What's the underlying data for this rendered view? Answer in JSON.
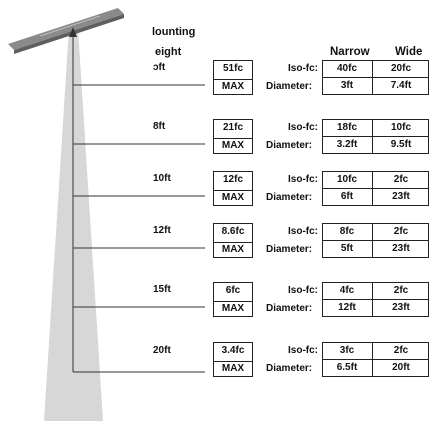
{
  "header": {
    "mounting_line1": "lounting",
    "mounting_line2": "eight",
    "col_narrow": "Narrow",
    "col_wide": "Wide"
  },
  "rows": [
    {
      "height": "ɔft",
      "fc": "51fc",
      "max": "MAX",
      "iso": "Iso-fc:",
      "diameter": "Diameter:",
      "narrow_fc": "40fc",
      "wide_fc": "20fc",
      "narrow_d": "3ft",
      "wide_d": "7.4ft"
    },
    {
      "height": "8ft",
      "fc": "21fc",
      "max": "MAX",
      "iso": "Iso-fc:",
      "diameter": "Diameter:",
      "narrow_fc": "18fc",
      "wide_fc": "10fc",
      "narrow_d": "3.2ft",
      "wide_d": "9.5ft"
    },
    {
      "height": "10ft",
      "fc": "12fc",
      "max": "MAX",
      "iso": "Iso-fc:",
      "diameter": "Diameter:",
      "narrow_fc": "10fc",
      "wide_fc": "2fc",
      "narrow_d": "6ft",
      "wide_d": "23ft"
    },
    {
      "height": "12ft",
      "fc": "8.6fc",
      "max": "MAX",
      "iso": "Iso-fc:",
      "diameter": "Diameter:",
      "narrow_fc": "8fc",
      "wide_fc": "2fc",
      "narrow_d": "5ft",
      "wide_d": "23ft"
    },
    {
      "height": "15ft",
      "fc": "6fc",
      "max": "MAX",
      "iso": "Iso-fc:",
      "diameter": "Diameter:",
      "narrow_fc": "4fc",
      "wide_fc": "2fc",
      "narrow_d": "12ft",
      "wide_d": "23ft"
    },
    {
      "height": "20ft",
      "fc": "3.4fc",
      "max": "MAX",
      "iso": "Iso-fc:",
      "diameter": "Diameter:",
      "narrow_fc": "3fc",
      "wide_fc": "2fc",
      "narrow_d": "6.5ft",
      "wide_d": "20ft"
    }
  ],
  "colors": {
    "cone": "#d7d7d7",
    "lines": "#333333",
    "fixture": "#6f6f6f"
  }
}
